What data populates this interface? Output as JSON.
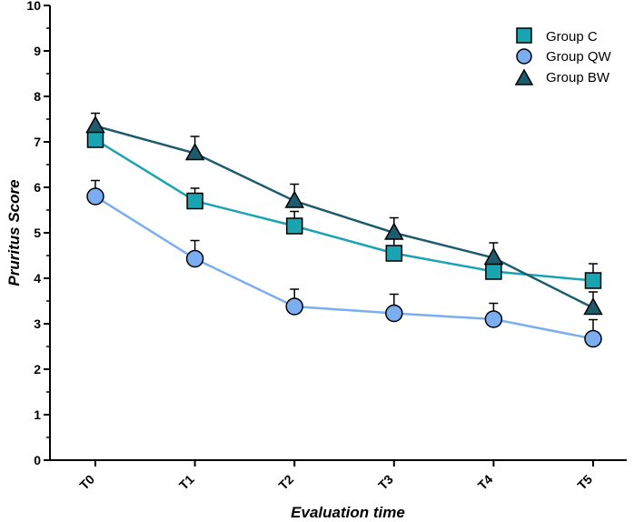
{
  "chart_data": {
    "type": "line",
    "title": "",
    "xlabel": "Evaluation time",
    "ylabel": "Pruritus Score",
    "categories": [
      "T0",
      "T1",
      "T2",
      "T3",
      "T4",
      "T5"
    ],
    "ylim": [
      0,
      10
    ],
    "yticks": [
      0,
      1,
      2,
      3,
      4,
      5,
      6,
      7,
      8,
      9,
      10
    ],
    "grid": false,
    "legend_position": "top-right",
    "series": [
      {
        "name": "Group C",
        "marker": "square",
        "color": "#1aa3b0",
        "values": [
          7.05,
          5.7,
          5.15,
          4.55,
          4.15,
          3.95
        ],
        "errors": [
          0.2,
          0.28,
          0.32,
          0.32,
          0.32,
          0.37
        ]
      },
      {
        "name": "Group QW",
        "marker": "circle",
        "color": "#7aaef0",
        "values": [
          5.8,
          4.43,
          3.38,
          3.23,
          3.1,
          2.67
        ],
        "errors": [
          0.35,
          0.4,
          0.38,
          0.42,
          0.35,
          0.42
        ]
      },
      {
        "name": "Group BW",
        "marker": "triangle",
        "color": "#1d5c6e",
        "values": [
          7.35,
          6.75,
          5.7,
          5.0,
          4.45,
          3.35
        ],
        "errors": [
          0.28,
          0.37,
          0.37,
          0.33,
          0.33,
          0.35
        ]
      }
    ]
  }
}
